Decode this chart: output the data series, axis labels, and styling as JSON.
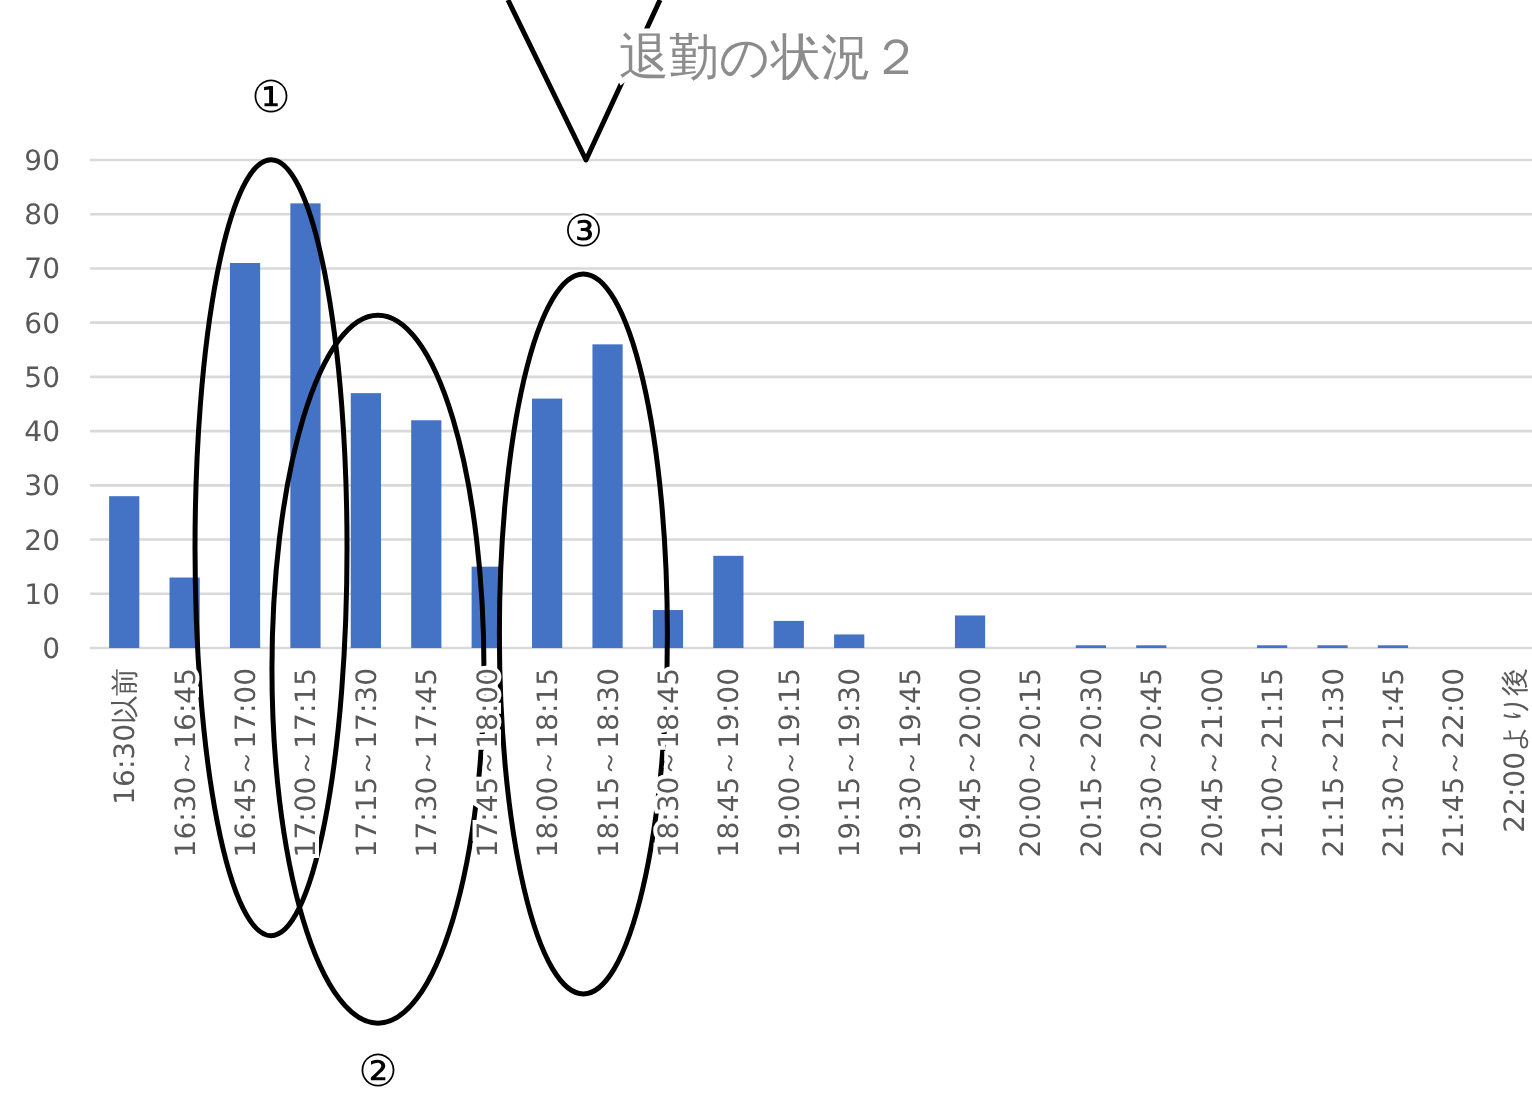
{
  "chart_data": {
    "type": "bar",
    "title": "退勤の状況２",
    "categories": [
      "16:30以前",
      "16:30～16:45",
      "16:45～17:00",
      "17:00～17:15",
      "17:15～17:30",
      "17:30～17:45",
      "17:45～18:00",
      "18:00～18:15",
      "18:15～18:30",
      "18:30～18:45",
      "18:45～19:00",
      "19:00～19:15",
      "19:15～19:30",
      "19:30～19:45",
      "19:45～20:00",
      "20:00～20:15",
      "20:15～20:30",
      "20:30～20:45",
      "20:45～21:00",
      "21:00～21:15",
      "21:15～21:30",
      "21:30～21:45",
      "21:45～22:00",
      "22:00より後"
    ],
    "values": [
      28,
      13,
      71,
      82,
      47,
      42,
      15,
      46,
      56,
      7,
      17,
      5,
      2.5,
      0,
      6,
      0,
      0.5,
      0.5,
      0,
      0.5,
      0.5,
      0.5,
      0,
      0
    ],
    "color": "#4472c4",
    "ylim": [
      0,
      90
    ],
    "yticks": [
      0,
      10,
      20,
      30,
      40,
      50,
      60,
      70,
      80,
      90
    ],
    "grid": "y",
    "annotations": [
      "①",
      "②",
      "③"
    ]
  }
}
